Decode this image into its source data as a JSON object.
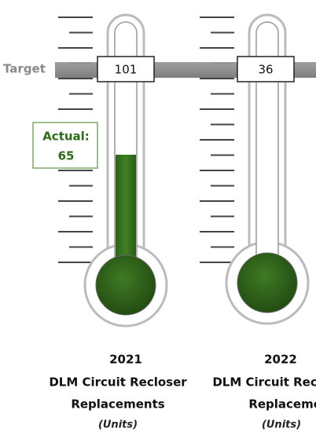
{
  "target_label": "Target",
  "thermometers": [
    {
      "target": 101,
      "actual_label": "Actual:",
      "actual": 65,
      "year": "2021",
      "title_lines": [
        "DLM Circuit Recloser",
        "Replacements"
      ],
      "unit": "(Units)"
    },
    {
      "target": 36,
      "year": "2022",
      "title_lines": [
        "DLM Circuit Recloser",
        "Replacements"
      ],
      "unit": "(Units)"
    }
  ]
}
